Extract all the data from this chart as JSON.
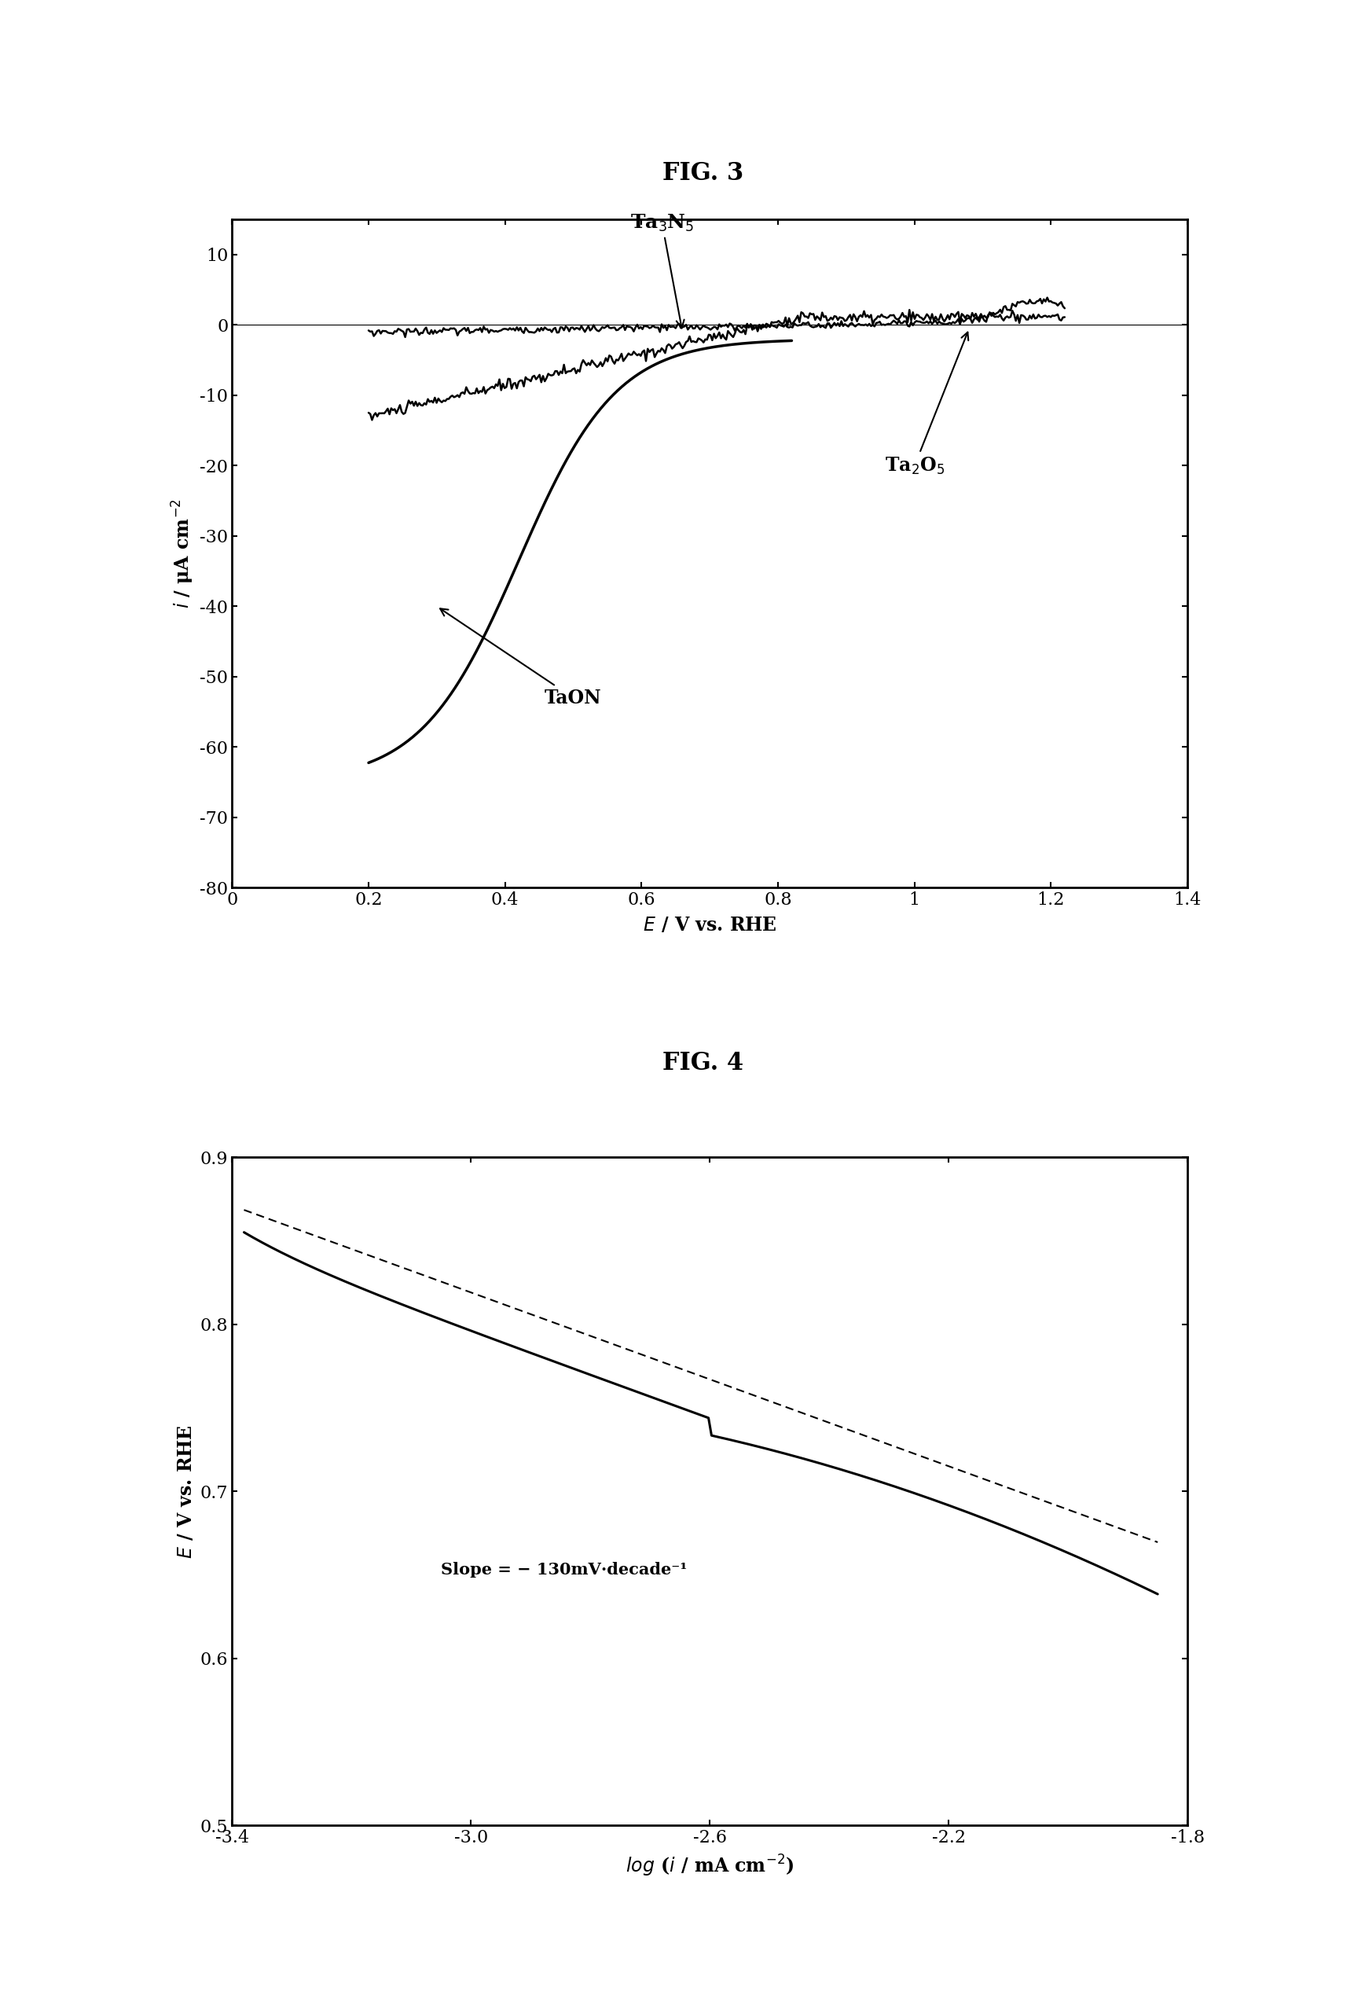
{
  "fig3_title": "FIG. 3",
  "fig4_title": "FIG. 4",
  "fig3_xlabel": "E / V vs. RHE",
  "fig3_ylabel": "i / μA cm⁻²",
  "fig3_xlim": [
    0,
    1.4
  ],
  "fig3_ylim": [
    -80,
    15
  ],
  "fig3_xticks": [
    0,
    0.2,
    0.4,
    0.6,
    0.8,
    1.0,
    1.2,
    1.4
  ],
  "fig3_xtick_labels": [
    "0",
    "0.2",
    "0.4",
    "0.6",
    "0.8",
    "1",
    "1.2",
    "1.4"
  ],
  "fig3_yticks": [
    10,
    0,
    -10,
    -20,
    -30,
    -40,
    -50,
    -60,
    -70,
    -80
  ],
  "fig3_ytick_labels": [
    "10",
    "0",
    "-10",
    "-20",
    "-30",
    "-40",
    "-50",
    "-60",
    "-70",
    "-80"
  ],
  "fig4_xlabel": "log (i / mA cm⁻²)",
  "fig4_ylabel": "E / V vs. RHE",
  "fig4_xlim": [
    -3.4,
    -1.8
  ],
  "fig4_ylim": [
    0.5,
    0.9
  ],
  "fig4_xticks": [
    -3.4,
    -3.0,
    -2.6,
    -2.2,
    -1.8
  ],
  "fig4_xtick_labels": [
    "-3.4",
    "-3.0",
    "-2.6",
    "-2.2",
    "-1.8"
  ],
  "fig4_yticks": [
    0.5,
    0.6,
    0.7,
    0.8,
    0.9
  ],
  "fig4_ytick_labels": [
    "0.5",
    "0.6",
    "0.7",
    "0.8",
    "0.9"
  ],
  "slope_label": "Slope = − 130mV·decade⁻¹",
  "background_color": "#ffffff",
  "line_color": "#000000",
  "taon_label": "TaON",
  "ta3n5_label": "Ta$_3$N$_5$",
  "ta2o5_label": "Ta$_2$O$_5$"
}
